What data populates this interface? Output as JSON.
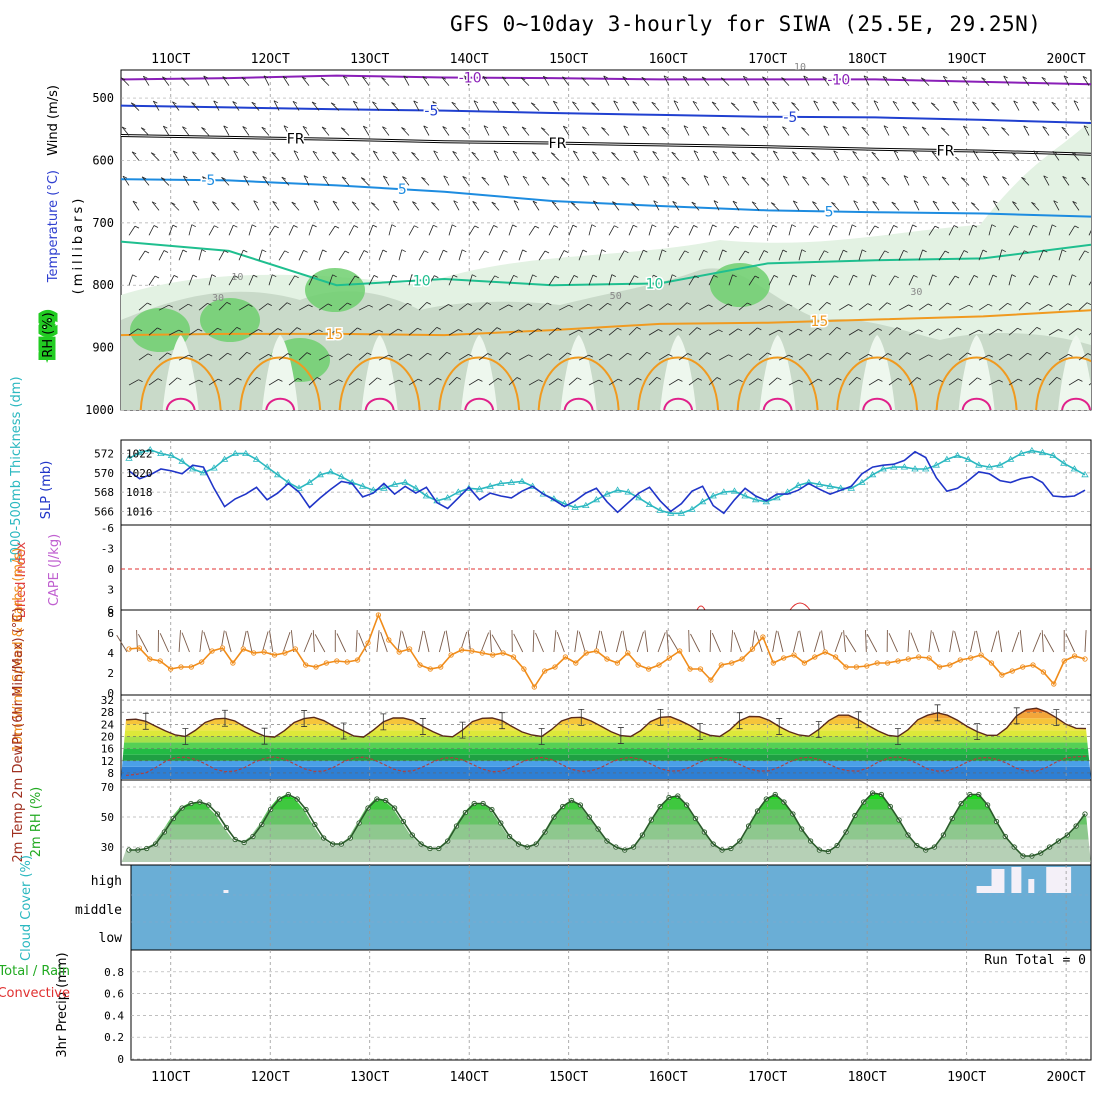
{
  "title": "GFS 0~10day 3-hourly for SIWA (25.5E, 29.25N)",
  "colors": {
    "purple": "#8a1fb8",
    "blue": "#2040d0",
    "cyan": "#1d8ce0",
    "teal": "#1fbf8f",
    "orange": "#f09a20",
    "magenta": "#e0208a",
    "slp": "#2035c8",
    "thick": "#2bb8c0",
    "wind10": "#f08c1a",
    "rh_green": "#22cc22",
    "cloud": "#6aaed6",
    "grid": "#999999"
  },
  "chart_data": [
    {
      "id": "upper-air",
      "type": "contour",
      "ylabel": "(millibars)",
      "side_labels": [
        "Wind (m/s)",
        "Temperature (°C)",
        "RH (%)"
      ],
      "y_ticks": [
        500,
        600,
        700,
        800,
        900,
        1000
      ],
      "ylim": [
        455,
        1000
      ],
      "x_ticks": [
        "11OCT",
        "12OCT",
        "13OCT",
        "14OCT",
        "15OCT",
        "16OCT",
        "17OCT",
        "18OCT",
        "19OCT",
        "20OCT"
      ],
      "xlim_days": [
        10.5,
        20.25
      ],
      "isotherm_labels": [
        "-10",
        "-10",
        "-5",
        "-5",
        "FR",
        "FR",
        "FR",
        "-5",
        "5",
        "10",
        "10",
        "15",
        "15",
        "5"
      ],
      "rh_labels": [
        "10",
        "30",
        "50",
        "30",
        "10"
      ],
      "isotherms_mb": [
        {
          "name": "-10",
          "levels_mb": [
            470,
            468,
            464,
            467,
            468,
            470,
            470,
            470,
            474,
            478
          ]
        },
        {
          "name": "-5",
          "levels_mb": [
            512,
            515,
            518,
            520,
            524,
            527,
            530,
            531,
            535,
            540
          ]
        },
        {
          "name": "FR",
          "levels_mb": [
            560,
            563,
            566,
            570,
            572,
            575,
            578,
            582,
            585,
            590
          ]
        },
        {
          "name": "5",
          "levels_mb": [
            630,
            632,
            640,
            650,
            665,
            673,
            680,
            683,
            685,
            690
          ]
        },
        {
          "name": "10",
          "levels_mb": [
            730,
            745,
            800,
            790,
            800,
            797,
            765,
            760,
            757,
            735
          ]
        },
        {
          "name": "15",
          "levels_mb": [
            880,
            878,
            878,
            880,
            872,
            862,
            860,
            855,
            850,
            840
          ]
        }
      ]
    },
    {
      "id": "slp-thickness",
      "type": "line",
      "ylabel_left": "1000-500mb Thickness (dm)",
      "ylabel_right": "SLP (mb)",
      "left_ticks": [
        566,
        568,
        570,
        572
      ],
      "right_ticks": [
        1016,
        1018,
        1020,
        1022
      ],
      "ylim_slp": [
        1015,
        1023
      ],
      "ylim_thick": [
        565,
        573
      ],
      "series": [
        {
          "name": "SLP",
          "unit": "mb",
          "values": [
            1020.2,
            1019.4,
            1019.8,
            1020.4,
            1020.2,
            1019.9,
            1020.8,
            1020.6,
            1018.4,
            1016.5,
            1017.3,
            1017.8,
            1018.5,
            1017.2,
            1017.9,
            1018.9,
            1018.0,
            1016.4,
            1017.4,
            1018.3,
            1019.1,
            1018.9,
            1017.5,
            1017.9,
            1018.9,
            1017.8,
            1018.6,
            1017.9,
            1018.5,
            1016.9,
            1016.3,
            1017.4,
            1018.5,
            1017.2,
            1017.9,
            1017.6,
            1017.4,
            1018.1,
            1018.6,
            1017.8,
            1017.2,
            1016.5,
            1017.1,
            1017.9,
            1018.4,
            1017.0,
            1015.9,
            1016.9,
            1017.9,
            1018.5,
            1017.1,
            1016.0,
            1016.8,
            1018.1,
            1018.6,
            1016.6,
            1015.8,
            1017.2,
            1018.4,
            1017.6,
            1017.1,
            1017.8,
            1017.8,
            1018.2,
            1018.9,
            1018.3,
            1017.8,
            1018.2,
            1018.6,
            1019.9,
            1020.6,
            1020.8,
            1020.9,
            1021.3,
            1022.2,
            1021.6,
            1019.5,
            1018.1,
            1018.4,
            1019.2,
            1020.1,
            1019.9,
            1019.2,
            1019.0,
            1019.4,
            1019.6,
            1019.0,
            1017.6,
            1017.5,
            1017.6,
            1018.2
          ]
        },
        {
          "name": "Thickness",
          "unit": "dm",
          "values": [
            571.5,
            572.1,
            572.4,
            572.0,
            571.8,
            571.2,
            570.4,
            570.0,
            570.5,
            571.4,
            572.0,
            572.0,
            571.4,
            570.6,
            569.8,
            569.0,
            568.4,
            569.0,
            569.8,
            570.1,
            569.6,
            569.0,
            568.6,
            568.2,
            568.4,
            568.8,
            569.0,
            568.4,
            567.6,
            567.1,
            567.4,
            568.0,
            568.4,
            568.3,
            568.6,
            568.9,
            569.0,
            569.1,
            568.6,
            567.8,
            567.3,
            566.8,
            566.4,
            566.6,
            567.2,
            567.8,
            568.2,
            568.0,
            567.4,
            566.7,
            566.1,
            565.8,
            565.8,
            566.2,
            567.0,
            567.6,
            568.0,
            568.1,
            567.6,
            567.2,
            567.0,
            567.4,
            568.0,
            568.7,
            569.0,
            568.8,
            568.6,
            568.4,
            568.4,
            569.0,
            569.8,
            570.4,
            570.6,
            570.6,
            570.4,
            570.4,
            570.8,
            571.4,
            571.8,
            571.4,
            570.8,
            570.6,
            570.8,
            571.4,
            572.0,
            572.3,
            572.1,
            571.8,
            571.0,
            570.4,
            569.8
          ]
        }
      ]
    },
    {
      "id": "cape-li",
      "type": "line",
      "ylabel_left": "Lifted Index",
      "ylabel_right": "CAPE (J/kg)",
      "ticks": [
        "-6",
        "-3",
        "0",
        "3",
        "6"
      ],
      "ylim": [
        -6,
        6
      ],
      "series": [
        {
          "name": "Lifted Index",
          "values": []
        },
        {
          "name": "CAPE",
          "values": [
            0,
            0,
            0,
            0,
            0,
            0,
            0,
            0,
            0,
            0
          ]
        }
      ]
    },
    {
      "id": "wind10m",
      "type": "line",
      "ylabel": "10m Wind Speed & Barbs (m/s)",
      "ticks": [
        0,
        2,
        4,
        6,
        8
      ],
      "ylim": [
        0,
        8
      ],
      "series": [
        {
          "name": "10m Wind Speed",
          "unit": "m/s",
          "values": [
            4.4,
            4.5,
            3.4,
            3.2,
            2.4,
            2.6,
            2.6,
            3.1,
            4.2,
            4.5,
            3.0,
            4.4,
            4.0,
            4.1,
            3.8,
            4.0,
            4.4,
            2.8,
            2.6,
            3.0,
            3.2,
            3.1,
            3.3,
            5.0,
            7.8,
            5.3,
            4.1,
            4.4,
            2.8,
            2.4,
            2.6,
            3.8,
            4.3,
            4.2,
            4.0,
            3.8,
            4.0,
            3.6,
            2.4,
            0.6,
            2.2,
            2.6,
            3.6,
            3.0,
            4.0,
            4.2,
            3.4,
            3.0,
            4.0,
            2.8,
            2.4,
            2.8,
            3.5,
            4.2,
            2.4,
            2.4,
            1.3,
            2.8,
            3.0,
            3.4,
            4.4,
            5.6,
            3.0,
            3.5,
            3.8,
            3.0,
            3.6,
            4.1,
            3.6,
            2.6,
            2.6,
            2.7,
            3.0,
            3.0,
            3.2,
            3.4,
            3.6,
            3.5,
            2.6,
            2.8,
            3.3,
            3.5,
            3.8,
            3.0,
            1.8,
            2.2,
            2.6,
            2.8,
            2.1,
            0.9,
            3.2,
            3.7,
            3.4
          ]
        }
      ]
    },
    {
      "id": "temp-dewpt",
      "type": "area",
      "ylabel": "2m Temp 2m DewPt (6hr Min/Max) (°C)",
      "ticks": [
        8,
        12,
        16,
        20,
        24,
        28,
        32
      ],
      "ylim": [
        6,
        33
      ],
      "series": [
        {
          "name": "2m Temp",
          "unit": "°C",
          "values": [
            25.5,
            25.7,
            25.0,
            23.4,
            21.8,
            20.5,
            20.0,
            22.0,
            24.6,
            25.8,
            26.0,
            25.1,
            23.2,
            21.5,
            20.1,
            19.8,
            21.9,
            24.6,
            25.9,
            26.3,
            25.2,
            23.4,
            21.8,
            20.2,
            19.8,
            22.1,
            24.8,
            26.1,
            26.1,
            25.3,
            23.3,
            21.6,
            20.2,
            19.9,
            22.1,
            24.9,
            26.0,
            26.1,
            25.2,
            23.3,
            21.5,
            20.5,
            20.0,
            22.3,
            25.1,
            26.2,
            26.3,
            25.1,
            23.4,
            21.6,
            20.3,
            20.0,
            21.9,
            24.9,
            26.3,
            26.5,
            25.2,
            23.6,
            21.6,
            20.4,
            20.0,
            22.1,
            25.2,
            26.6,
            26.5,
            25.3,
            23.3,
            21.6,
            20.5,
            20.1,
            22.3,
            25.2,
            27.0,
            27.0,
            25.5,
            23.6,
            21.8,
            20.4,
            20.0,
            22.2,
            25.5,
            27.0,
            27.8,
            27.0,
            25.4,
            23.3,
            21.6,
            20.4,
            20.4,
            22.8,
            26.8,
            28.9,
            29.3,
            28.1,
            26.2,
            24.0,
            22.7,
            22.6
          ]
        },
        {
          "name": "2m DewPt",
          "unit": "°C",
          "values": [
            7.2,
            7.5,
            8.0,
            9.8,
            11.8,
            13.0,
            13.2,
            12.5,
            11.0,
            9.2,
            8.4,
            8.6,
            9.8,
            11.6,
            12.8,
            13.3,
            12.6,
            11.0,
            9.4,
            8.5,
            8.6,
            9.9,
            11.7,
            12.9,
            13.2,
            12.4,
            10.9,
            9.3,
            8.5,
            8.7,
            10.0,
            11.6,
            12.8,
            13.0,
            12.3,
            10.8,
            9.3,
            8.4,
            8.6,
            9.9,
            11.6,
            12.7,
            13.1,
            12.4,
            10.8,
            9.2,
            8.5,
            8.7,
            9.8,
            11.5,
            12.7,
            13.1,
            12.5,
            11.0,
            9.4,
            8.6,
            8.7,
            9.9,
            11.6,
            12.8,
            13.1,
            12.4,
            10.8,
            9.3,
            8.6,
            8.7,
            9.9,
            11.6,
            12.8,
            13.2,
            12.5,
            10.9,
            9.4,
            8.7,
            8.6,
            9.7,
            11.6,
            12.9,
            13.3,
            12.5,
            11.0,
            9.3,
            8.6,
            8.7,
            9.9,
            11.6,
            12.8,
            13.1,
            12.5,
            11.2,
            9.5,
            8.7,
            8.6,
            9.8,
            11.6,
            12.9,
            13.3,
            13.5
          ]
        }
      ]
    },
    {
      "id": "rh2m",
      "type": "area",
      "ylabel": "2m RH (%)",
      "ticks": [
        30,
        50,
        70
      ],
      "ylim": [
        20,
        72
      ],
      "series": [
        {
          "name": "2m RH",
          "unit": "%",
          "values": [
            28,
            28,
            29,
            32,
            40,
            49,
            56,
            59,
            60,
            58,
            52,
            43,
            35,
            33,
            37,
            45,
            55,
            62,
            65,
            62,
            55,
            45,
            36,
            32,
            32,
            36,
            46,
            56,
            62,
            61,
            56,
            47,
            38,
            32,
            29,
            29,
            34,
            44,
            53,
            59,
            59,
            55,
            46,
            37,
            32,
            30,
            32,
            40,
            50,
            57,
            61,
            58,
            50,
            42,
            34,
            30,
            28,
            30,
            38,
            48,
            57,
            63,
            64,
            58,
            49,
            40,
            32,
            28,
            29,
            34,
            44,
            54,
            62,
            65,
            60,
            52,
            42,
            34,
            28,
            27,
            31,
            40,
            51,
            60,
            66,
            65,
            57,
            48,
            38,
            31,
            28,
            30,
            38,
            49,
            59,
            65,
            65,
            58,
            47,
            37,
            30,
            24,
            24,
            26,
            30,
            34,
            38,
            44,
            52
          ]
        }
      ]
    },
    {
      "id": "cloud-cover",
      "type": "area",
      "ylabel": "Cloud Cover (%)",
      "layers": [
        "high",
        "middle",
        "low"
      ],
      "series": [
        {
          "name": "high cloud gaps",
          "periods_days": [
            [
              11.53,
              11.58
            ],
            [
              19.1,
              19.25
            ],
            [
              19.25,
              19.38
            ],
            [
              19.45,
              19.55
            ],
            [
              19.62,
              19.68
            ],
            [
              19.8,
              20.05
            ]
          ]
        }
      ]
    },
    {
      "id": "precip",
      "type": "bar",
      "ylabel": "3hr Precip (mm)",
      "legend": [
        "Total / Rain",
        "Convective"
      ],
      "run_total": "Run Total = 0",
      "ticks": [
        "0",
        "0.2",
        "0.4",
        "0.6",
        "0.8"
      ],
      "ylim": [
        0,
        1
      ],
      "values": []
    }
  ]
}
